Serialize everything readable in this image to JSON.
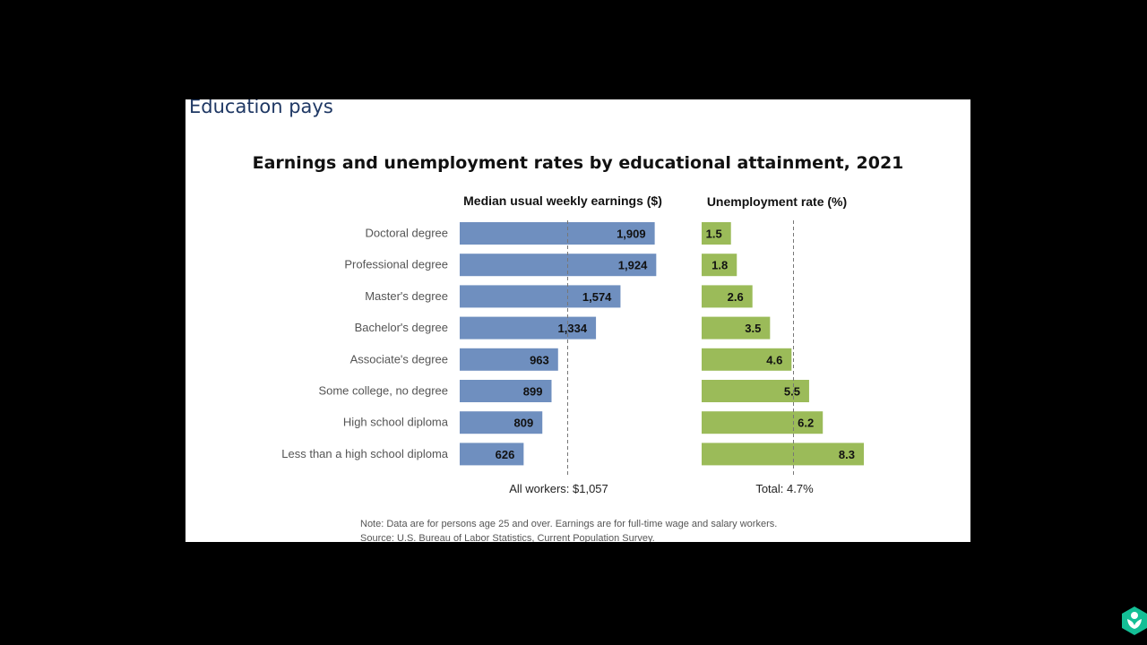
{
  "slide": {
    "title": "Education pays",
    "note": "Note: Data are for persons age 25 and over. Earnings are for full-time wage and salary workers.",
    "source": "Source: U.S. Bureau of Labor Statistics, Current Population Survey."
  },
  "chart_data": {
    "type": "bar",
    "title": "Earnings and unemployment rates by educational attainment, 2021",
    "categories": [
      "Doctoral degree",
      "Professional degree",
      "Master's degree",
      "Bachelor's degree",
      "Associate's degree",
      "Some college, no degree",
      "High school diploma",
      "Less than a high school diploma"
    ],
    "panels": [
      {
        "subtitle": "Median usual weekly earnings ($)",
        "values": [
          1909,
          1924,
          1574,
          1334,
          963,
          899,
          809,
          626
        ],
        "labels": [
          "1,909",
          "1,924",
          "1,574",
          "1,334",
          "963",
          "899",
          "809",
          "626"
        ],
        "reference": 1057,
        "reference_label": "All workers: $1,057",
        "color": "#6f8fbf",
        "xlim": [
          0,
          2000
        ]
      },
      {
        "subtitle": "Unemployment rate (%)",
        "values": [
          1.5,
          1.8,
          2.6,
          3.5,
          4.6,
          5.5,
          6.2,
          8.3
        ],
        "labels": [
          "1.5",
          "1.8",
          "2.6",
          "3.5",
          "4.6",
          "5.5",
          "6.2",
          "8.3"
        ],
        "reference": 4.7,
        "reference_label": "Total: 4.7%",
        "color": "#9bbb59",
        "xlim": [
          0,
          8.3
        ]
      }
    ]
  }
}
